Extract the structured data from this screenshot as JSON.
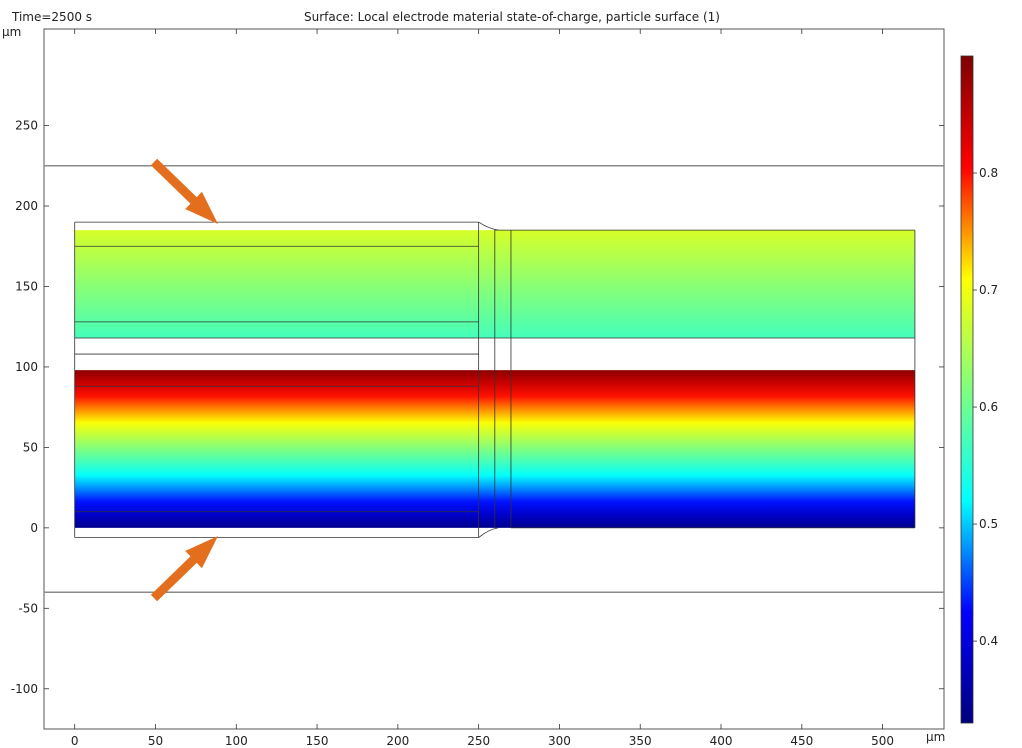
{
  "header": {
    "time_label": "Time=2500 s",
    "title": "Surface: Local electrode material state-of-charge, particle surface (1)"
  },
  "chart_data": {
    "type": "heatmap",
    "time_label": "Time=2500 s",
    "title": "Surface: Local electrode material state-of-charge, particle surface (1)",
    "xlabel": "µm",
    "ylabel": "µm",
    "xlim": [
      -19,
      538
    ],
    "ylim": [
      -125,
      310
    ],
    "x_ticks": [
      0,
      50,
      100,
      150,
      200,
      250,
      300,
      350,
      400,
      450,
      500
    ],
    "y_ticks": [
      -100,
      -50,
      0,
      50,
      100,
      150,
      200,
      250
    ],
    "colorbar": {
      "ticks": [
        0.4,
        0.5,
        0.6,
        0.7,
        0.8
      ],
      "range": [
        0.33,
        0.9
      ],
      "colormap": [
        "#00007f",
        "#0000ff",
        "#00ffff",
        "#7fff7f",
        "#ffff00",
        "#ff0000",
        "#7f0000"
      ]
    },
    "reference_lines_y": [
      225,
      -40
    ],
    "electrode_bands": [
      {
        "y_range": [
          118,
          185
        ],
        "x_range": [
          0,
          520
        ],
        "soc_top": 0.68,
        "soc_bottom": 0.57
      },
      {
        "y_range": [
          0,
          98
        ],
        "x_range": [
          0,
          520
        ],
        "soc_top": 0.89,
        "soc_bottom": 0.34
      }
    ],
    "annotation_arrows": [
      {
        "direction": "down-right",
        "color": "#e36f1e"
      },
      {
        "direction": "up-right",
        "color": "#e36f1e"
      }
    ]
  }
}
